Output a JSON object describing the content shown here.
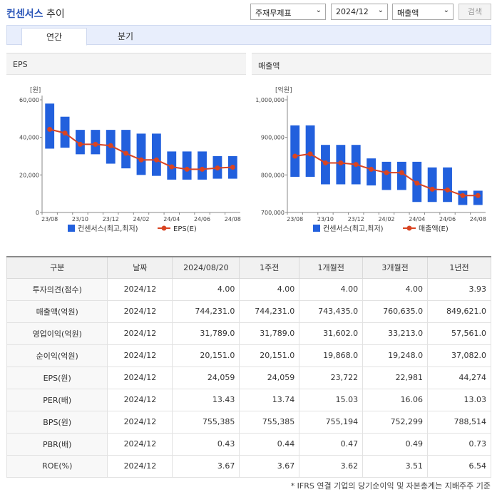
{
  "header": {
    "title_brand": "컨센서스",
    "title_suffix": " 추이",
    "select_type": "주재무제표",
    "select_period": "2024/12",
    "select_metric": "매출액",
    "search_label": "검색"
  },
  "tabs": [
    {
      "label": "연간",
      "active": true
    },
    {
      "label": "분기",
      "active": false
    }
  ],
  "colors": {
    "bar": "#2260dd",
    "line": "#d94422",
    "accent": "#2a55b8"
  },
  "chart_data": [
    {
      "type": "bar",
      "panel_title": "EPS",
      "unit_label": "[원]",
      "categories": [
        "23/08",
        "23/09",
        "23/10",
        "23/11",
        "23/12",
        "24/01",
        "24/02",
        "24/03",
        "24/04",
        "24/05",
        "24/06",
        "24/07",
        "24/08"
      ],
      "x_tick_labels": [
        "23/08",
        "23/10",
        "23/12",
        "24/02",
        "24/04",
        "24/06",
        "24/08"
      ],
      "ylim": [
        0,
        60000
      ],
      "y_ticks": [
        0,
        20000,
        40000,
        60000
      ],
      "y_tick_labels": [
        "0",
        "20,000",
        "40,000",
        "60,000"
      ],
      "series": [
        {
          "name": "컨센서스(최고,최저)",
          "kind": "range",
          "high": [
            58000,
            51000,
            44000,
            44000,
            44000,
            44000,
            42000,
            42000,
            32500,
            32500,
            32500,
            30000,
            30000
          ],
          "low": [
            34000,
            34500,
            31000,
            31000,
            26000,
            23500,
            20000,
            19500,
            17500,
            17500,
            17500,
            18000,
            18000
          ]
        },
        {
          "name": "EPS(E)",
          "kind": "line",
          "values": [
            44300,
            42300,
            36300,
            36300,
            35600,
            31500,
            28000,
            28000,
            24300,
            23000,
            23000,
            23700,
            24100
          ]
        }
      ]
    },
    {
      "type": "bar",
      "panel_title": "매출액",
      "unit_label": "[억원]",
      "categories": [
        "23/08",
        "23/09",
        "23/10",
        "23/11",
        "23/12",
        "24/01",
        "24/02",
        "24/03",
        "24/04",
        "24/05",
        "24/06",
        "24/07",
        "24/08"
      ],
      "x_tick_labels": [
        "23/08",
        "23/10",
        "23/12",
        "24/02",
        "24/04",
        "24/06",
        "24/08"
      ],
      "ylim": [
        700000,
        1000000
      ],
      "y_ticks": [
        700000,
        800000,
        900000,
        1000000
      ],
      "y_tick_labels": [
        "700,000",
        "800,000",
        "900,000",
        "1,000,000"
      ],
      "series": [
        {
          "name": "컨센서스(최고,최저)",
          "kind": "range",
          "high": [
            932000,
            932000,
            880000,
            880000,
            880000,
            844000,
            835000,
            835000,
            835000,
            820000,
            820000,
            758000,
            758000
          ],
          "low": [
            795000,
            795000,
            775000,
            775000,
            775000,
            772000,
            760000,
            760000,
            728000,
            728000,
            728000,
            720000,
            720000
          ]
        },
        {
          "name": "매출액(E)",
          "kind": "line",
          "values": [
            850000,
            856000,
            832000,
            832000,
            828000,
            815000,
            806000,
            806000,
            778000,
            762000,
            760000,
            745000,
            745000
          ]
        }
      ]
    }
  ],
  "table": {
    "columns": [
      "구분",
      "날짜",
      "2024/08/20",
      "1주전",
      "1개월전",
      "3개월전",
      "1년전"
    ],
    "rows": [
      [
        "투자의견(점수)",
        "2024/12",
        "4.00",
        "4.00",
        "4.00",
        "4.00",
        "3.93"
      ],
      [
        "매출액(억원)",
        "2024/12",
        "744,231.0",
        "744,231.0",
        "743,435.0",
        "760,635.0",
        "849,621.0"
      ],
      [
        "영업이익(억원)",
        "2024/12",
        "31,789.0",
        "31,789.0",
        "31,602.0",
        "33,213.0",
        "57,561.0"
      ],
      [
        "순이익(억원)",
        "2024/12",
        "20,151.0",
        "20,151.0",
        "19,868.0",
        "19,248.0",
        "37,082.0"
      ],
      [
        "EPS(원)",
        "2024/12",
        "24,059",
        "24,059",
        "23,722",
        "22,981",
        "44,274"
      ],
      [
        "PER(배)",
        "2024/12",
        "13.43",
        "13.74",
        "15.03",
        "16.06",
        "13.03"
      ],
      [
        "BPS(원)",
        "2024/12",
        "755,385",
        "755,385",
        "755,194",
        "752,299",
        "788,514"
      ],
      [
        "PBR(배)",
        "2024/12",
        "0.43",
        "0.44",
        "0.47",
        "0.49",
        "0.73"
      ],
      [
        "ROE(%)",
        "2024/12",
        "3.67",
        "3.67",
        "3.62",
        "3.51",
        "6.54"
      ]
    ]
  },
  "footnote": "* IFRS 연결 기업의 당기순이익 및 자본총계는 지배주주 기준"
}
